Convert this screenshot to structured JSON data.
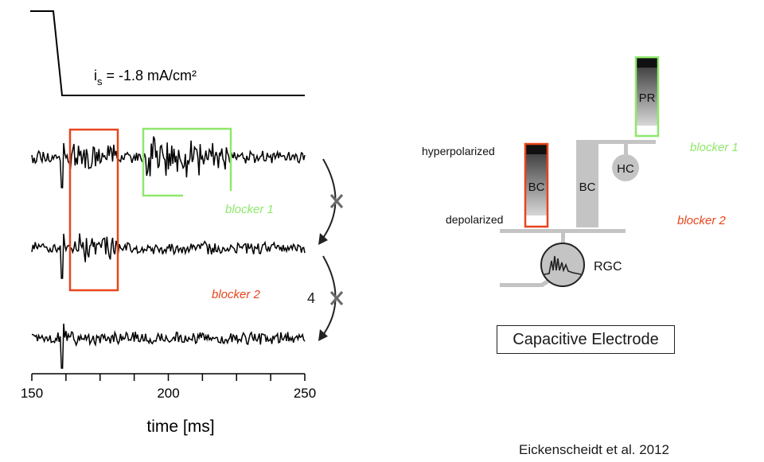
{
  "stimulus": {
    "label_main": "i",
    "label_sub": "s",
    "label_rest": " = -1.8 mA/cm²"
  },
  "traces": {
    "count": 3,
    "stim_onset_ms": 161,
    "red_window_ms": [
      163,
      181
    ],
    "green_window_ms": [
      192,
      222
    ]
  },
  "axis": {
    "xlabel": "time [ms]",
    "xlim": [
      150,
      250
    ],
    "ticks": [
      {
        "value": 150,
        "label": "150"
      },
      {
        "value": 200,
        "label": "200"
      },
      {
        "value": 250,
        "label": "250"
      }
    ],
    "minor_ticks": [
      150,
      162.5,
      175,
      187.5,
      200,
      212.5,
      225,
      237.5,
      250
    ]
  },
  "blockers": {
    "blocker1": {
      "label": "blocker 1",
      "color": "#8ee86b"
    },
    "blocker2": {
      "label": "blocker 2",
      "color": "#e8451c"
    },
    "stray_mark": "4"
  },
  "diagram": {
    "pr": "PR",
    "bc_active": "BC",
    "bc_passive": "BC",
    "hc": "HC",
    "rgc": "RGC",
    "hyperpolarized": "hyperpolarized",
    "depolarized": "depolarized",
    "blocker1": "blocker 1",
    "blocker2": "blocker 2",
    "electrode": "Capacitive Electrode"
  },
  "citation": "Eickenscheidt et al. 2012",
  "colors": {
    "red": "#e8451c",
    "green": "#8ee86b",
    "gray": "#c4c4c4",
    "trace": "#000000"
  }
}
